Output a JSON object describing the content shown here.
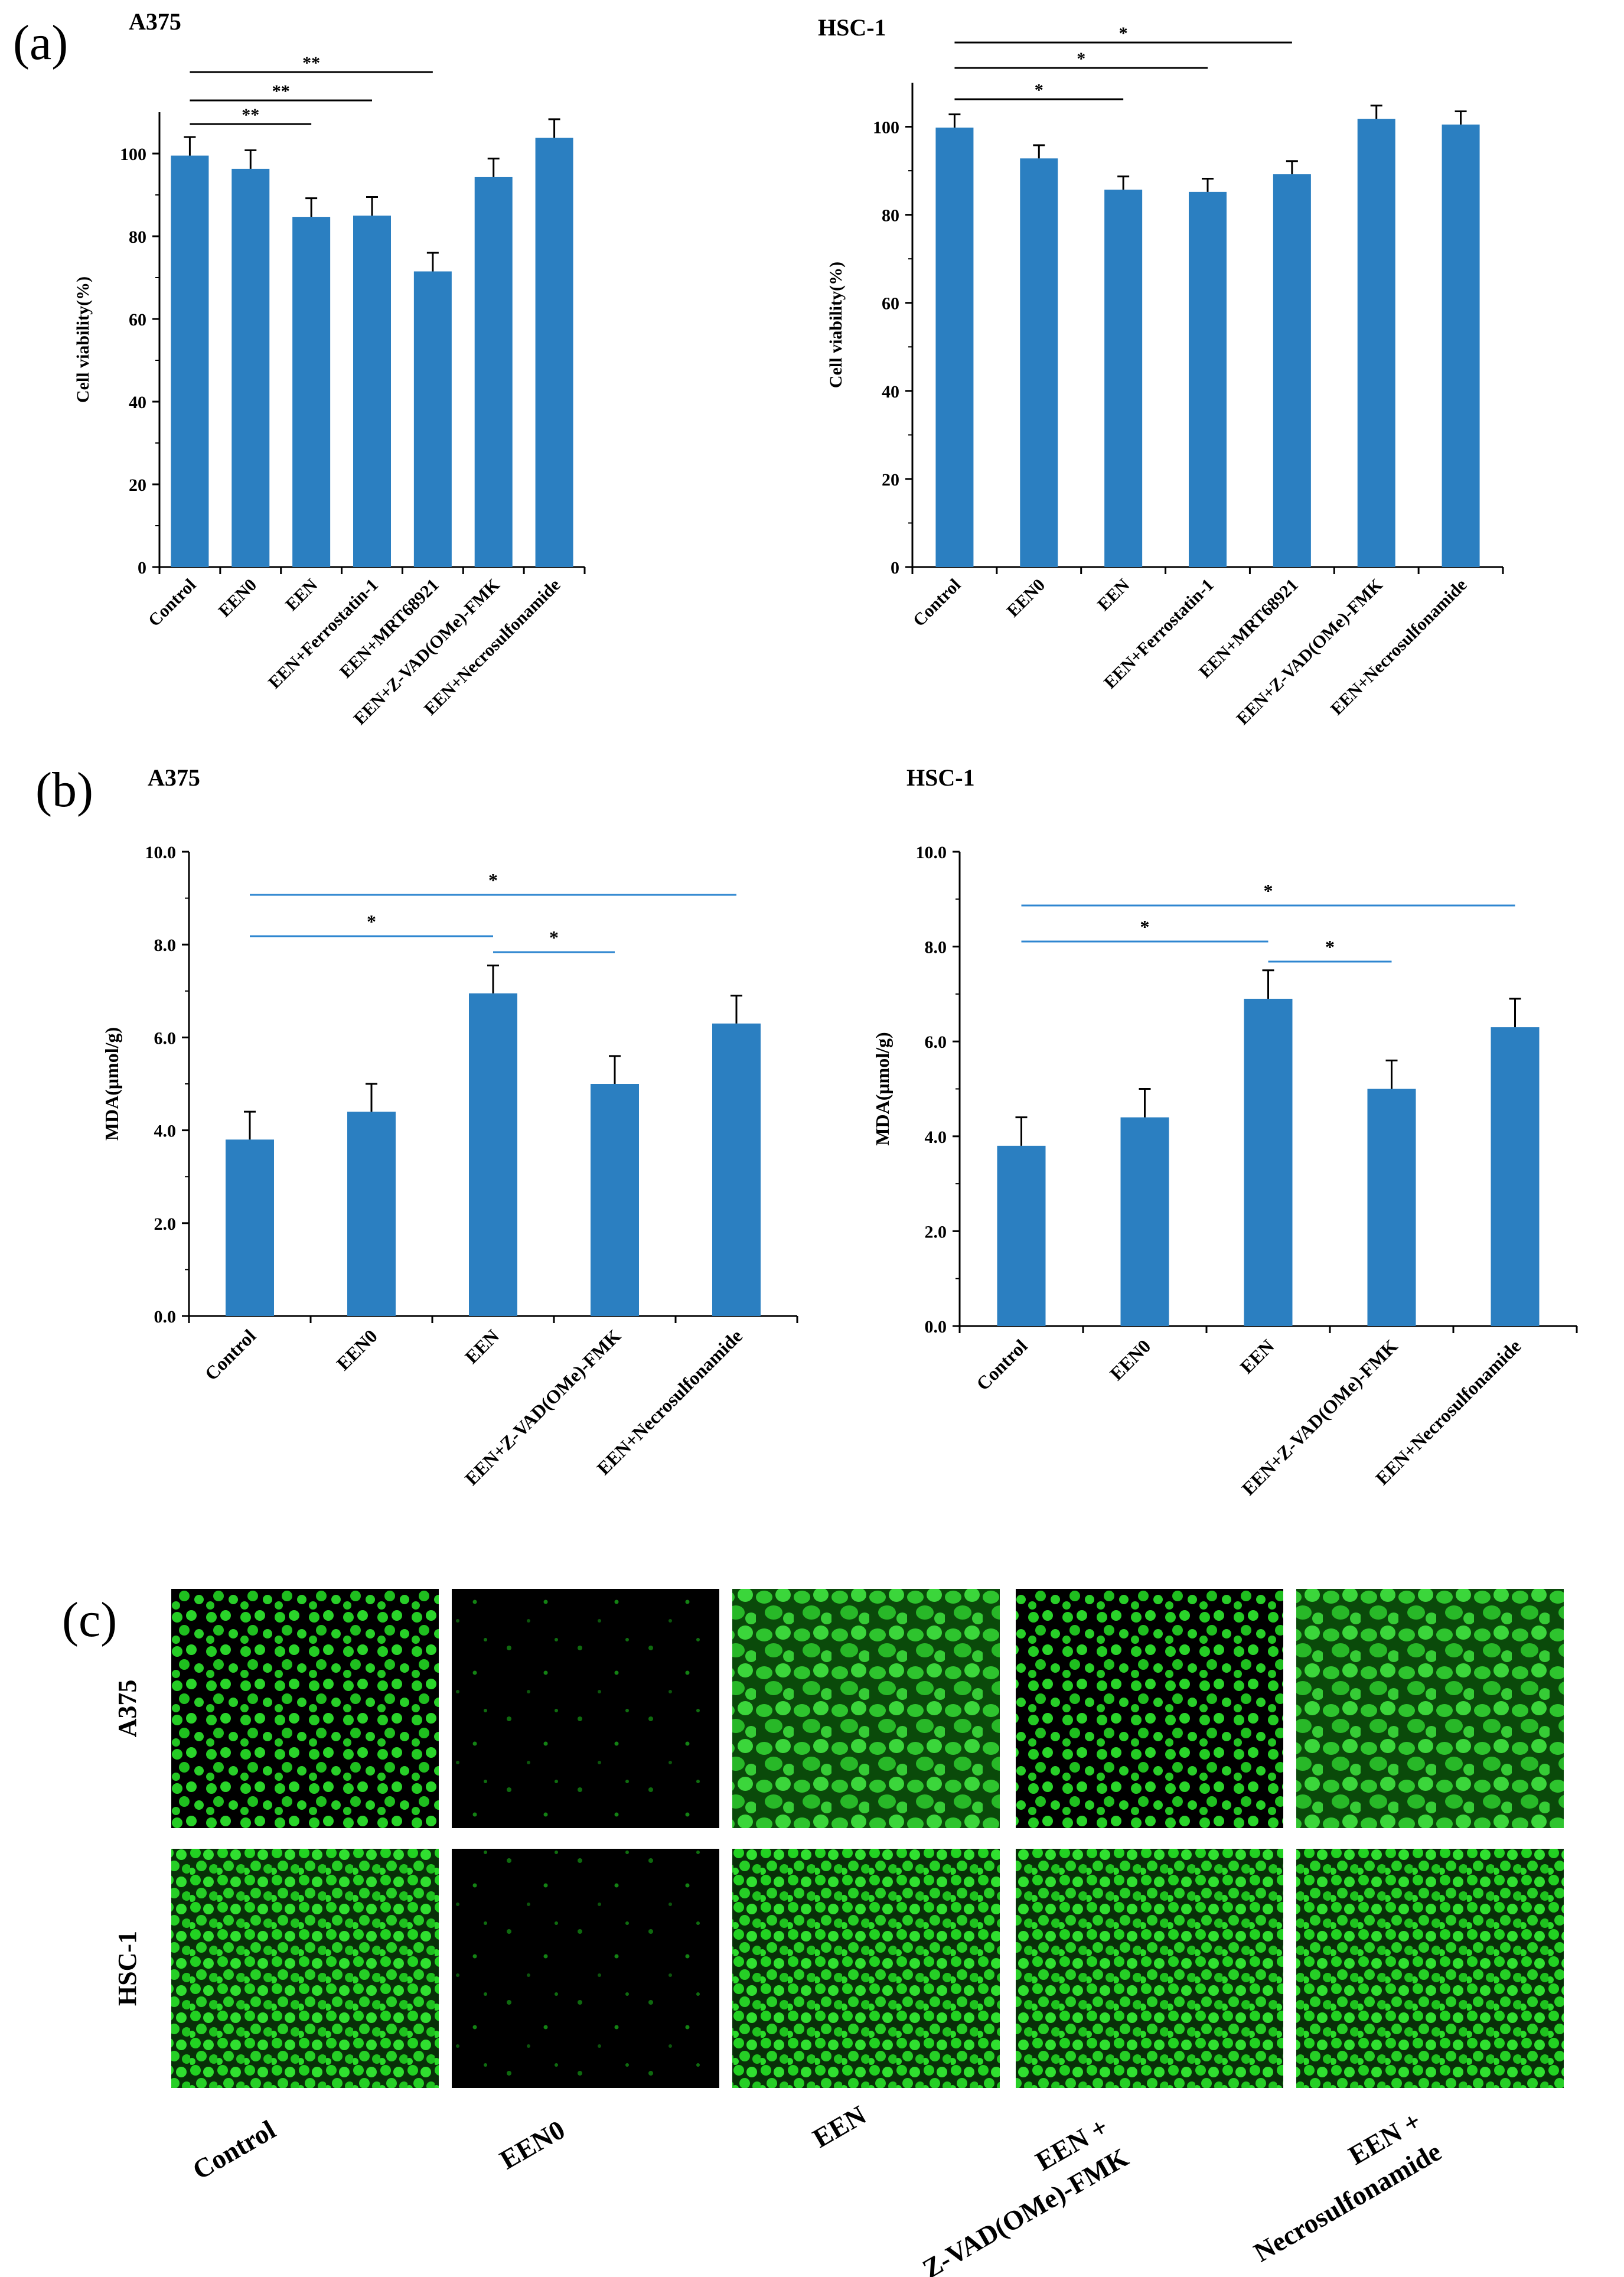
{
  "panel_labels": {
    "a": "(a)",
    "b": "(b)",
    "c": "(c)"
  },
  "colors": {
    "bar": "#2B7FC1",
    "sig_line_b": "#2E86D0",
    "axis": "#000000"
  },
  "chart_data": [
    {
      "id": "a_a375",
      "type": "bar",
      "title": "A375",
      "xlabel": "",
      "ylabel": "Cell viability(%)",
      "ylim": [
        0,
        110
      ],
      "yticks": [
        "0",
        "20",
        "40",
        "60",
        "80",
        "100"
      ],
      "ytick_values": [
        0,
        20,
        40,
        60,
        80,
        100
      ],
      "categories": [
        "Control",
        "EEN0",
        "EEN",
        "EEN+Ferrostatin-1",
        "EEN+MRT68921",
        "EEN+Z-VAD(OMe)-FMK",
        "EEN+Necrosulfonamide"
      ],
      "values": [
        99.5,
        96.3,
        84.7,
        85.0,
        71.5,
        94.3,
        103.8
      ],
      "errors": [
        4.5,
        4.5,
        4.5,
        4.5,
        4.5,
        4.5,
        4.5
      ],
      "significance": [
        {
          "from": 0,
          "to": 2,
          "label": "**"
        },
        {
          "from": 0,
          "to": 3,
          "label": "**"
        },
        {
          "from": 0,
          "to": 4,
          "label": "**"
        }
      ]
    },
    {
      "id": "a_hsc1",
      "type": "bar",
      "title": "HSC-1",
      "xlabel": "",
      "ylabel": "Cell viability(%)",
      "ylim": [
        0,
        110
      ],
      "yticks": [
        "0",
        "20",
        "40",
        "60",
        "80",
        "100"
      ],
      "ytick_values": [
        0,
        20,
        40,
        60,
        80,
        100
      ],
      "categories": [
        "Control",
        "EEN0",
        "EEN",
        "EEN+Ferrostatin-1",
        "EEN+MRT68921",
        "EEN+Z-VAD(OMe)-FMK",
        "EEN+Necrosulfonamide"
      ],
      "values": [
        99.8,
        92.8,
        85.7,
        85.2,
        89.2,
        101.8,
        100.5
      ],
      "errors": [
        3.0,
        3.0,
        3.0,
        3.0,
        3.0,
        3.0,
        3.0
      ],
      "significance": [
        {
          "from": 0,
          "to": 2,
          "label": "*"
        },
        {
          "from": 0,
          "to": 3,
          "label": "*"
        },
        {
          "from": 0,
          "to": 4,
          "label": "*"
        }
      ]
    },
    {
      "id": "b_a375",
      "type": "bar",
      "title": "A375",
      "xlabel": "",
      "ylabel": "MDA(μmol/g)",
      "ylim": [
        0,
        10
      ],
      "yticks": [
        "0.0",
        "2.0",
        "4.0",
        "6.0",
        "8.0",
        "10.0"
      ],
      "ytick_values": [
        0,
        2,
        4,
        6,
        8,
        10
      ],
      "categories": [
        "Control",
        "EEN0",
        "EEN",
        "EEN+Z-VAD(OMe)-FMK",
        "EEN+Necrosulfonamide"
      ],
      "values": [
        3.8,
        4.4,
        6.95,
        5.0,
        6.3
      ],
      "errors": [
        0.6,
        0.6,
        0.6,
        0.6,
        0.6
      ],
      "significance": [
        {
          "from": 0,
          "to": 2,
          "label": "*"
        },
        {
          "from": 2,
          "to": 3,
          "label": "*"
        },
        {
          "from": 0,
          "to": 4,
          "label": "*"
        }
      ]
    },
    {
      "id": "b_hsc1",
      "type": "bar",
      "title": "HSC-1",
      "xlabel": "",
      "ylabel": "MDA(μmol/g)",
      "ylim": [
        0,
        10
      ],
      "yticks": [
        "0.0",
        "2.0",
        "4.0",
        "6.0",
        "8.0",
        "10.0"
      ],
      "ytick_values": [
        0,
        2,
        4,
        6,
        8,
        10
      ],
      "categories": [
        "Control",
        "EEN0",
        "EEN",
        "EEN+Z-VAD(OMe)-FMK",
        "EEN+Necrosulfonamide"
      ],
      "values": [
        3.8,
        4.4,
        6.9,
        5.0,
        6.3
      ],
      "errors": [
        0.6,
        0.6,
        0.6,
        0.6,
        0.6
      ],
      "significance": [
        {
          "from": 0,
          "to": 2,
          "label": "*"
        },
        {
          "from": 2,
          "to": 3,
          "label": "*"
        },
        {
          "from": 0,
          "to": 4,
          "label": "*"
        }
      ]
    }
  ],
  "micrographs": {
    "row_labels": [
      "A375",
      "HSC-1"
    ],
    "column_labels": [
      [
        "Control"
      ],
      [
        "EEN0"
      ],
      [
        "EEN"
      ],
      [
        "EEN +",
        "Z-VAD(OMe)-FMK"
      ],
      [
        "EEN +",
        "Necrosulfonamide"
      ]
    ],
    "stain_level": [
      [
        0.75,
        0.08,
        0.95,
        0.7,
        0.95
      ],
      [
        0.8,
        0.15,
        0.85,
        0.75,
        0.8
      ]
    ]
  }
}
